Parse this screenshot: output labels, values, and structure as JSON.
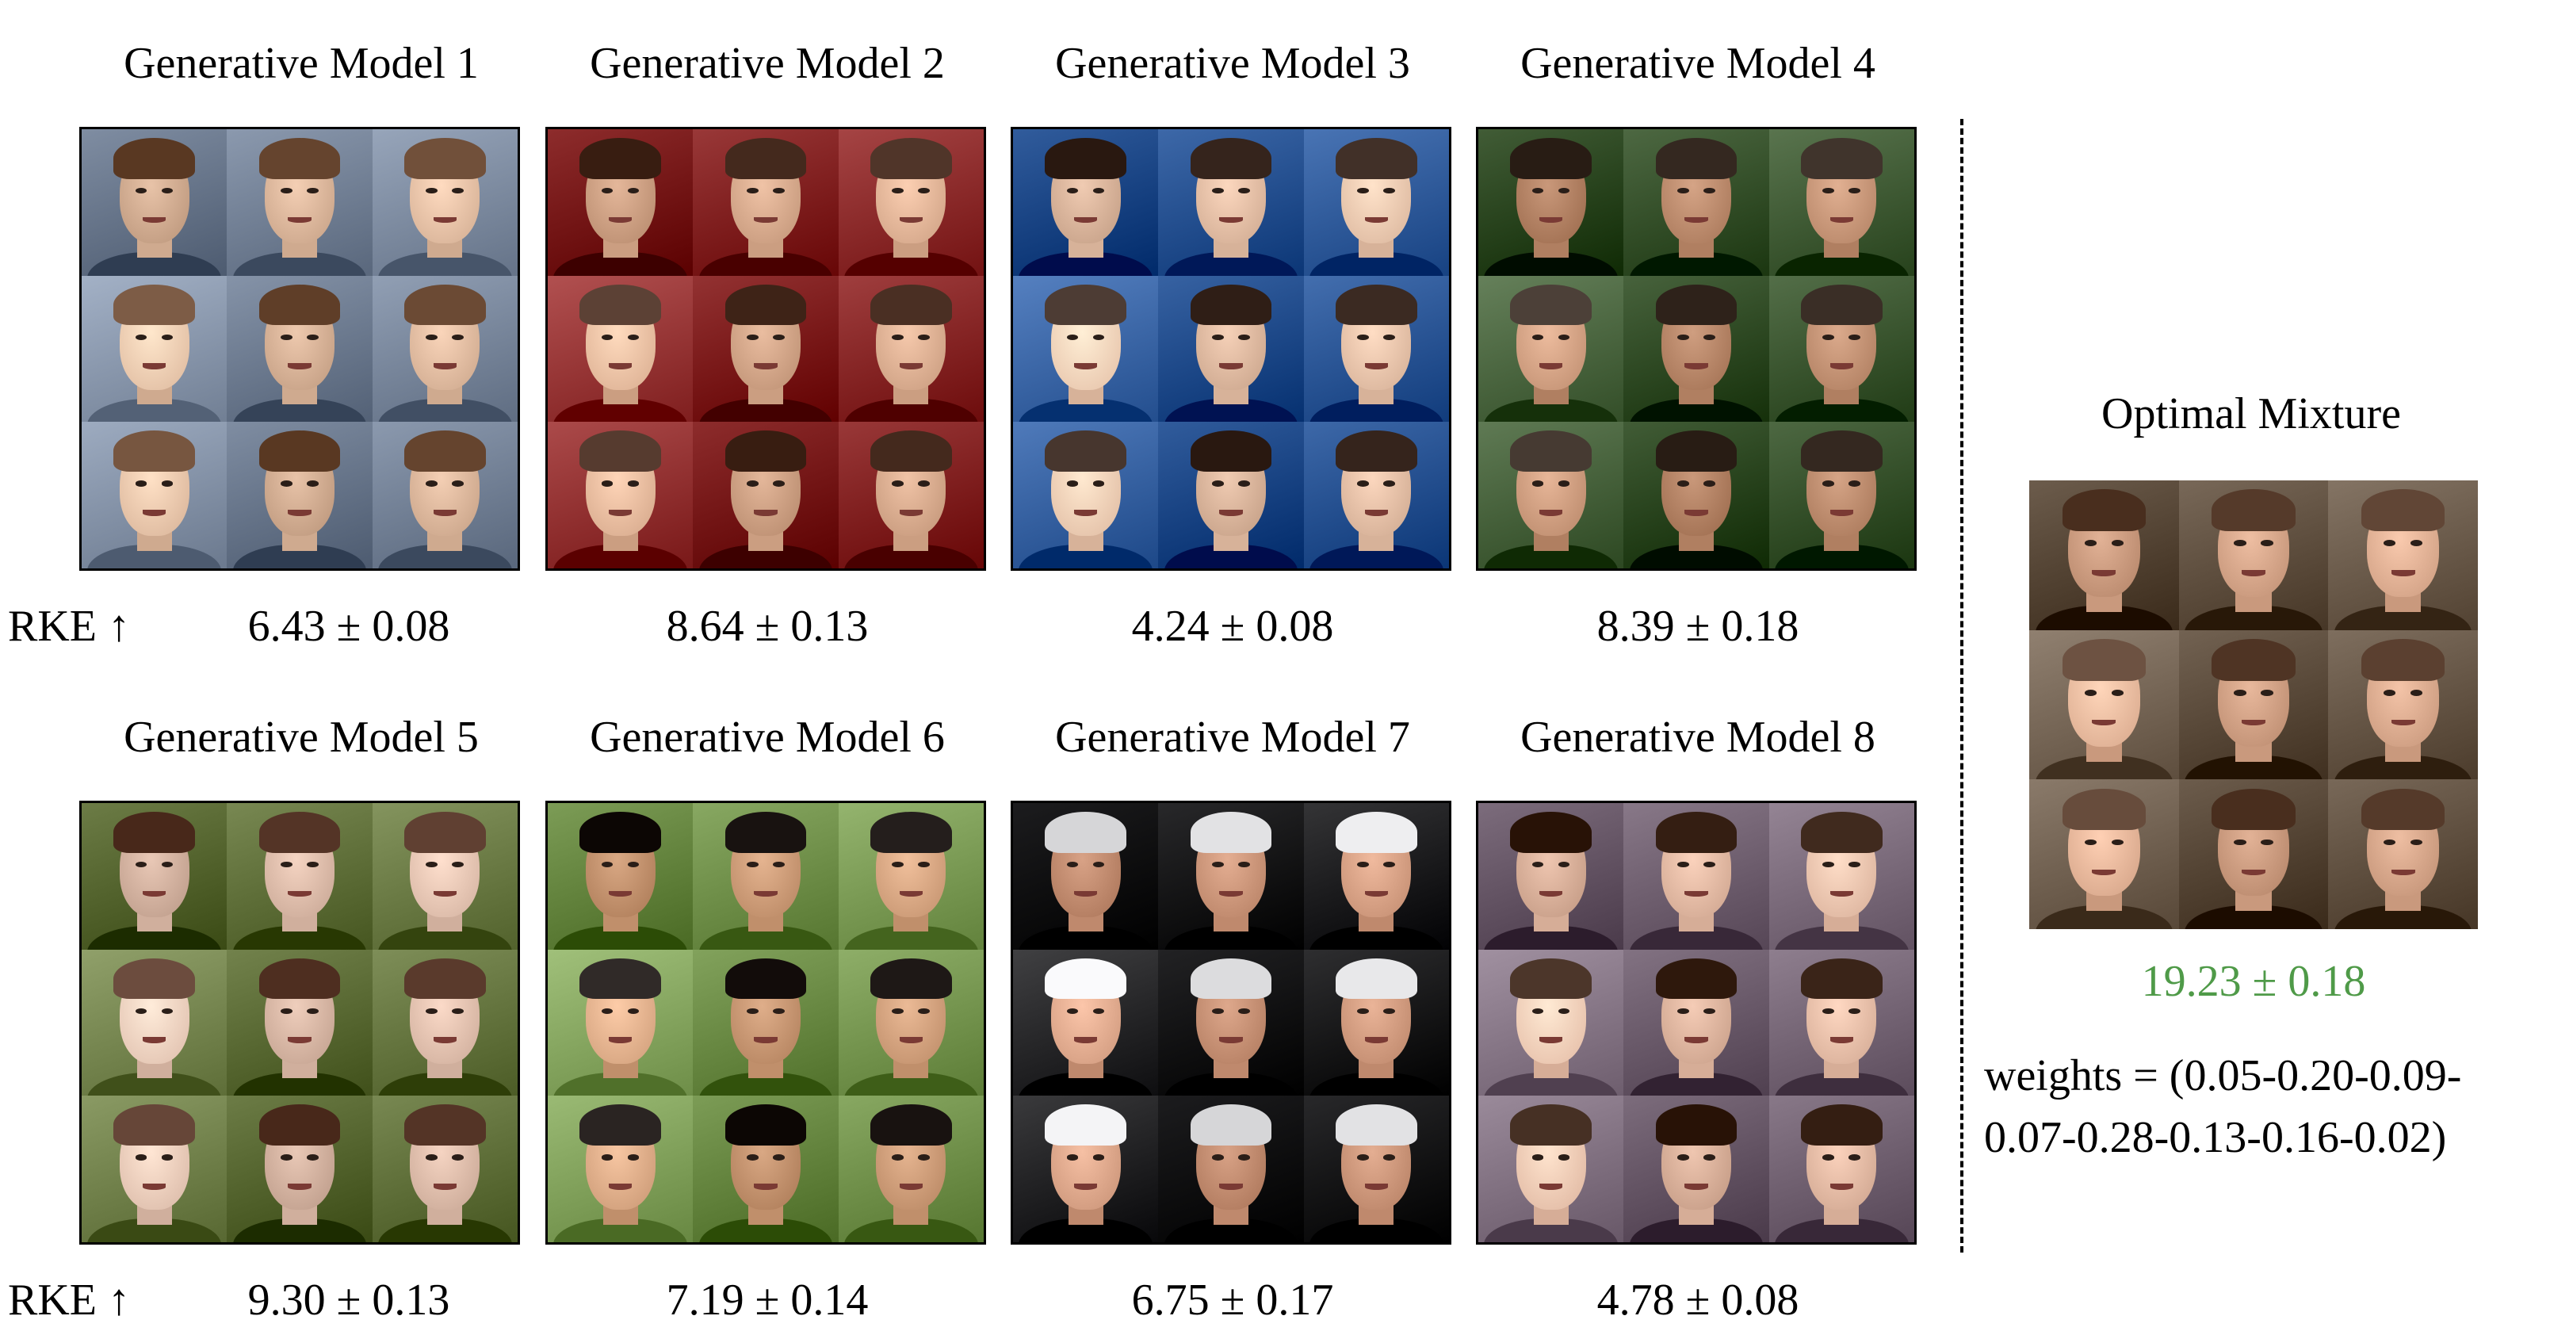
{
  "models": [
    {
      "title": "Generative Model 1",
      "score": "6.43 ± 0.08"
    },
    {
      "title": "Generative Model 2",
      "score": "8.64 ± 0.13"
    },
    {
      "title": "Generative Model 3",
      "score": "4.24 ± 0.08"
    },
    {
      "title": "Generative Model 4",
      "score": "8.39 ± 0.18"
    },
    {
      "title": "Generative Model 5",
      "score": "9.30 ± 0.13"
    },
    {
      "title": "Generative Model 6",
      "score": "7.19 ± 0.14"
    },
    {
      "title": "Generative Model 7",
      "score": "6.75 ± 0.17"
    },
    {
      "title": "Generative Model 8",
      "score": "4.78 ± 0.08"
    }
  ],
  "rke_label_row1": "RKE ↑",
  "rke_label_row2": "RKE ↑",
  "mixture": {
    "title": "Optimal Mixture",
    "score": "19.23 ± 0.18",
    "weights_line1": "weights = (0.05-0.20-0.09-",
    "weights_line2": "0.07-0.28-0.13-0.16-0.02)",
    "score_color": "#4f9a48"
  },
  "palettes": {
    "model1": [
      "#e8c3a8",
      "#6b4a34",
      "#7d8ba0"
    ],
    "model2": [
      "#e4b79a",
      "#4a2f23",
      "#8b2a2a"
    ],
    "model3": [
      "#f0cbb2",
      "#3b2a22",
      "#2f5a9a"
    ],
    "model4": [
      "#c9987a",
      "#3a2e26",
      "#3f5a34"
    ],
    "model5": [
      "#e9c8b6",
      "#5a3a2c",
      "#6a7a44"
    ],
    "model6": [
      "#d9a884",
      "#1e1816",
      "#7a9a54"
    ],
    "model7": [
      "#d8a286",
      "#e8e8ea",
      "#1a1a1c"
    ],
    "model8": [
      "#efc6b0",
      "#3a2418",
      "#7a6a7a"
    ],
    "mixture": [
      "#e2b296",
      "#5b4030",
      "#6a5a4a"
    ]
  }
}
